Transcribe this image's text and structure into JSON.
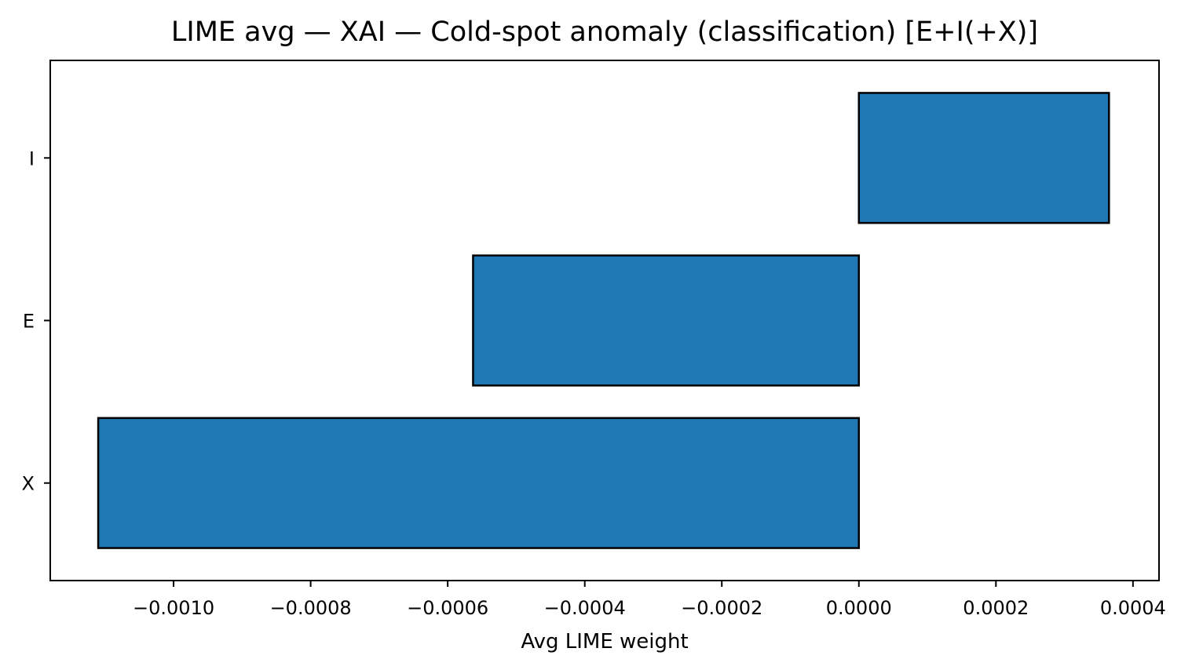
{
  "chart_data": {
    "type": "bar",
    "orientation": "horizontal",
    "title": "LIME avg — XAI — Cold-spot anomaly (classification) [E+I(+X)]",
    "xlabel": "Avg LIME weight",
    "ylabel": "",
    "categories": [
      "I",
      "E",
      "X"
    ],
    "values": [
      0.000365,
      -0.000563,
      -0.00111
    ],
    "xlim": [
      -0.00118,
      0.000438
    ],
    "xticks": [
      -0.001,
      -0.0008,
      -0.0006,
      -0.0004,
      -0.0002,
      0.0,
      0.0002,
      0.0004
    ],
    "xtick_labels": [
      "−0.0010",
      "−0.0008",
      "−0.0006",
      "−0.0004",
      "−0.0002",
      "0.0000",
      "0.0002",
      "0.0004"
    ],
    "grid": false,
    "legend": "none",
    "colors": {
      "bar_fill": "#1f77b4",
      "bar_edge": "#000000",
      "axis": "#000000"
    }
  }
}
